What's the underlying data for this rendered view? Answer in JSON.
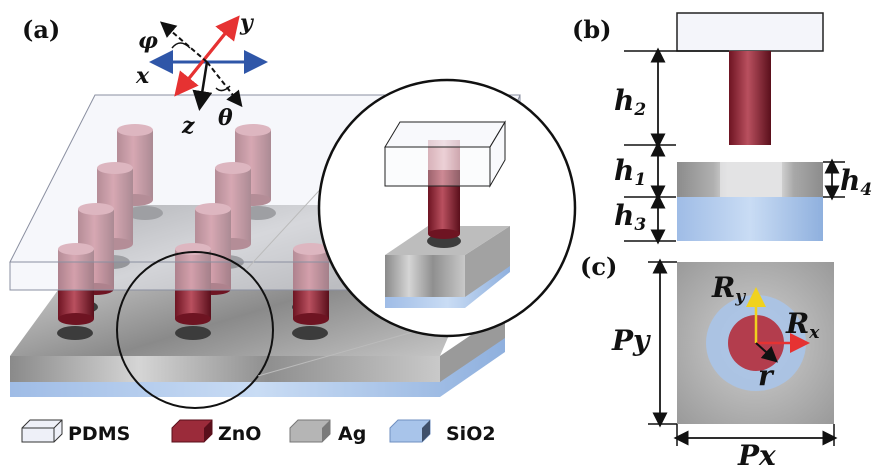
{
  "panels": {
    "a": "(a)",
    "b": "(b)",
    "c": "(c)"
  },
  "axes": {
    "x": "x",
    "y": "y",
    "z": "z",
    "phi": "φ",
    "theta": "θ"
  },
  "dimensions": {
    "h2": {
      "base": "h",
      "sub": "2"
    },
    "h1": {
      "base": "h",
      "sub": "1"
    },
    "h3": {
      "base": "h",
      "sub": "3"
    },
    "h4": {
      "base": "h",
      "sub": "4"
    },
    "Py": "Py",
    "Px": "Px",
    "Ry": {
      "base": "R",
      "sub": "y"
    },
    "Rx": {
      "base": "R",
      "sub": "x"
    },
    "r": "r"
  },
  "legend": [
    "PDMS",
    "ZnO",
    "Ag",
    "SiO2"
  ],
  "colors": {
    "pdms": "#eef0f8",
    "zno": "#9b2b3a",
    "ag": "#a8a8a8",
    "sio2": "#a8c4ea",
    "axis_blue": "#2f56a8",
    "axis_red": "#e63232",
    "arrow_red": "#e63232",
    "arrow_yellow": "#f0d21e"
  }
}
